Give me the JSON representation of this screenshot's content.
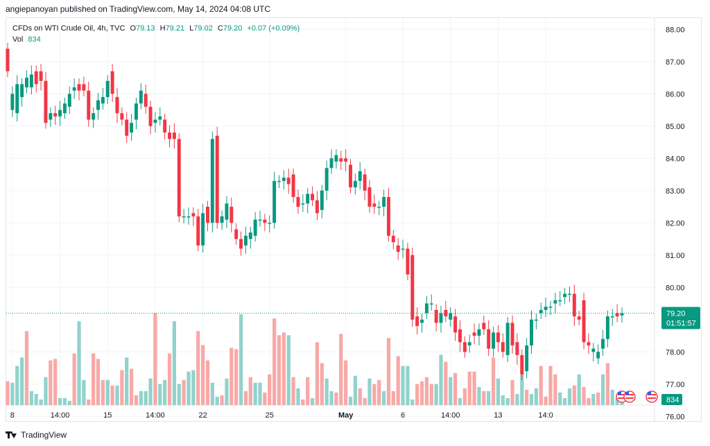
{
  "publish_line": "angiepanoyan published on TradingView.com, May 14, 2024 04:08 UTC",
  "legend": {
    "symbol": "CFDs on WTI Crude Oil, 4h, TVC",
    "o_label": "O",
    "o_value": "79.13",
    "h_label": "H",
    "h_value": "79.21",
    "l_label": "L",
    "l_value": "79.02",
    "c_label": "C",
    "c_value": "79.20",
    "change": "+0.07 (+0.09%)",
    "vol_label": "Vol",
    "vol_value": "834"
  },
  "price_badge": {
    "price": "79.20",
    "countdown": "01:51:57"
  },
  "volume_badge": "834",
  "footer_brand": "TradingView",
  "colors": {
    "up": "#089981",
    "down": "#f23645",
    "vol_up": "#92d2cc",
    "vol_down": "#f7a9a7",
    "grid": "#f0f3fa",
    "axis_text": "#131722"
  },
  "chart_data": {
    "type": "candlestick",
    "title": "",
    "xlabel": "",
    "ylabel": "",
    "ylim": [
      76.35,
      88.35
    ],
    "grid": true,
    "last_price": 79.2,
    "y_ticks": [
      "88.00",
      "87.00",
      "86.00",
      "85.00",
      "84.00",
      "83.00",
      "82.00",
      "81.00",
      "80.00",
      "78.00",
      "77.00",
      "76.00"
    ],
    "x_ticks": [
      {
        "label": "8",
        "index": 1
      },
      {
        "label": "14:00",
        "index": 11
      },
      {
        "label": "15",
        "index": 21
      },
      {
        "label": "14:00",
        "index": 31
      },
      {
        "label": "22",
        "index": 41
      },
      {
        "label": "25",
        "index": 55
      },
      {
        "label": "May",
        "index": 71
      },
      {
        "label": "6",
        "index": 83
      },
      {
        "label": "14:00",
        "index": 93
      },
      {
        "label": "13",
        "index": 103
      },
      {
        "label": "14:0",
        "index": 113
      }
    ],
    "candles": [
      [
        87.4,
        86.7
      ],
      [
        85.5,
        86.0
      ],
      [
        85.4,
        86.3
      ],
      [
        85.9,
        86.3
      ],
      [
        86.2,
        86.5
      ],
      [
        86.2,
        86.6
      ],
      [
        86.7,
        86.3
      ],
      [
        86.7,
        86.4
      ],
      [
        86.4,
        85.1
      ],
      [
        85.2,
        85.4
      ],
      [
        85.4,
        85.3
      ],
      [
        85.3,
        85.5
      ],
      [
        85.4,
        85.7
      ],
      [
        85.6,
        86.0
      ],
      [
        86.1,
        86.2
      ],
      [
        86.3,
        86.1
      ],
      [
        86.3,
        86.1
      ],
      [
        86.1,
        85.2
      ],
      [
        85.2,
        85.4
      ],
      [
        85.5,
        85.8
      ],
      [
        85.7,
        85.9
      ],
      [
        85.9,
        86.4
      ],
      [
        86.7,
        86.0
      ],
      [
        85.9,
        85.4
      ],
      [
        85.4,
        85.2
      ],
      [
        85.2,
        84.7
      ],
      [
        84.8,
        85.1
      ],
      [
        85.2,
        85.7
      ],
      [
        85.7,
        86.1
      ],
      [
        86.0,
        85.6
      ],
      [
        85.6,
        85.0
      ],
      [
        85.1,
        85.2
      ],
      [
        85.2,
        85.3
      ],
      [
        85.2,
        84.8
      ],
      [
        84.8,
        84.6
      ],
      [
        84.8,
        84.6
      ],
      [
        84.6,
        82.2
      ],
      [
        82.2,
        82.2
      ],
      [
        82.2,
        82.2
      ],
      [
        82.3,
        82.2
      ],
      [
        82.2,
        81.3
      ],
      [
        81.3,
        82.3
      ],
      [
        82.5,
        82.0
      ],
      [
        82.0,
        84.6
      ],
      [
        84.7,
        82.0
      ],
      [
        82.0,
        82.2
      ],
      [
        82.1,
        82.6
      ],
      [
        82.5,
        82.0
      ],
      [
        81.8,
        81.5
      ],
      [
        81.5,
        81.2
      ],
      [
        81.3,
        81.6
      ],
      [
        81.5,
        81.7
      ],
      [
        81.6,
        82.1
      ],
      [
        82.1,
        82.1
      ],
      [
        82.1,
        82.0
      ],
      [
        82.0,
        82.0
      ],
      [
        82.0,
        83.3
      ],
      [
        83.3,
        83.3
      ],
      [
        83.3,
        83.4
      ],
      [
        83.4,
        83.2
      ],
      [
        83.5,
        82.8
      ],
      [
        82.8,
        82.5
      ],
      [
        82.6,
        82.6
      ],
      [
        82.6,
        82.9
      ],
      [
        82.9,
        82.7
      ],
      [
        82.7,
        82.3
      ],
      [
        82.4,
        83.0
      ],
      [
        83.0,
        83.7
      ],
      [
        83.7,
        84.0
      ],
      [
        83.9,
        84.1
      ],
      [
        84.0,
        83.9
      ],
      [
        84.0,
        83.9
      ],
      [
        83.8,
        83.1
      ],
      [
        83.1,
        83.3
      ],
      [
        83.3,
        83.6
      ],
      [
        83.5,
        83.0
      ],
      [
        83.1,
        82.5
      ],
      [
        82.6,
        82.5
      ],
      [
        82.5,
        82.5
      ],
      [
        82.5,
        82.8
      ],
      [
        82.8,
        81.6
      ],
      [
        81.6,
        81.4
      ],
      [
        81.3,
        81.1
      ],
      [
        81.2,
        81.2
      ],
      [
        81.2,
        80.4
      ],
      [
        81.0,
        79.0
      ],
      [
        79.1,
        78.8
      ],
      [
        78.9,
        79.0
      ],
      [
        79.2,
        79.5
      ],
      [
        79.5,
        79.5
      ],
      [
        79.3,
        78.9
      ],
      [
        78.9,
        79.2
      ],
      [
        79.3,
        79.1
      ],
      [
        79.0,
        79.2
      ],
      [
        79.1,
        78.6
      ],
      [
        78.7,
        78.3
      ],
      [
        78.3,
        78.0
      ],
      [
        78.2,
        78.3
      ],
      [
        78.6,
        78.5
      ],
      [
        78.5,
        78.7
      ],
      [
        78.9,
        78.7
      ],
      [
        78.7,
        78.1
      ],
      [
        78.1,
        78.6
      ],
      [
        78.6,
        78.3
      ],
      [
        78.3,
        78.0
      ],
      [
        77.9,
        78.9
      ],
      [
        78.9,
        78.2
      ],
      [
        78.3,
        77.9
      ],
      [
        77.9,
        77.3
      ],
      [
        77.4,
        78.2
      ]
    ],
    "candles_b": [
      [
        78.2,
        79.0
      ],
      [
        79.0,
        79.0
      ],
      [
        79.2,
        79.3
      ],
      [
        79.3,
        79.4
      ],
      [
        79.4,
        79.4
      ],
      [
        79.5,
        79.6
      ],
      [
        79.6,
        79.6
      ],
      [
        79.7,
        79.8
      ],
      [
        79.8,
        79.8
      ],
      [
        79.8,
        79.1
      ],
      [
        79.1,
        79.0
      ],
      [
        79.6,
        78.3
      ],
      [
        78.3,
        78.2
      ],
      [
        78.0,
        78.1
      ],
      [
        77.8,
        78.0
      ],
      [
        78.1,
        78.4
      ],
      [
        78.4,
        79.1
      ],
      [
        79.1,
        79.1
      ],
      [
        79.2,
        79.1
      ],
      [
        79.13,
        79.2
      ]
    ],
    "volume": [
      {
        "v": 17,
        "up": false
      },
      {
        "v": 16,
        "up": true
      },
      {
        "v": 28,
        "up": true
      },
      {
        "v": 34,
        "up": true
      },
      {
        "v": 53,
        "up": false
      },
      {
        "v": 10,
        "up": true
      },
      {
        "v": 8,
        "up": true
      },
      {
        "v": 4,
        "up": true
      },
      {
        "v": 20,
        "up": true
      },
      {
        "v": 32,
        "up": false
      },
      {
        "v": 33,
        "up": false
      },
      {
        "v": 5,
        "up": true
      },
      {
        "v": 5,
        "up": true
      },
      {
        "v": 3,
        "up": true
      },
      {
        "v": 37,
        "up": false
      },
      {
        "v": 60,
        "up": true
      },
      {
        "v": 18,
        "up": true
      },
      {
        "v": 4,
        "up": false
      },
      {
        "v": 37,
        "up": false
      },
      {
        "v": 33,
        "up": false
      },
      {
        "v": 18,
        "up": false
      },
      {
        "v": 18,
        "up": true
      },
      {
        "v": 14,
        "up": false
      },
      {
        "v": 14,
        "up": true
      },
      {
        "v": 25,
        "up": false
      },
      {
        "v": 34,
        "up": true
      },
      {
        "v": 26,
        "up": false
      },
      {
        "v": 7,
        "up": false
      },
      {
        "v": 10,
        "up": true
      },
      {
        "v": 10,
        "up": true
      },
      {
        "v": 19,
        "up": true
      },
      {
        "v": 66,
        "up": false
      },
      {
        "v": 15,
        "up": true
      },
      {
        "v": 18,
        "up": true
      },
      {
        "v": 37,
        "up": false
      },
      {
        "v": 60,
        "up": true
      },
      {
        "v": 15,
        "up": true
      },
      {
        "v": 18,
        "up": false
      },
      {
        "v": 24,
        "up": true
      },
      {
        "v": 25,
        "up": true
      },
      {
        "v": 53,
        "up": false
      },
      {
        "v": 43,
        "up": false
      },
      {
        "v": 32,
        "up": false
      },
      {
        "v": 16,
        "up": true
      },
      {
        "v": 6,
        "up": true
      },
      {
        "v": 7,
        "up": false
      },
      {
        "v": 19,
        "up": true
      },
      {
        "v": 41,
        "up": false
      },
      {
        "v": 40,
        "up": false
      },
      {
        "v": 65,
        "up": true
      },
      {
        "v": 10,
        "up": false
      },
      {
        "v": 20,
        "up": false
      },
      {
        "v": 16,
        "up": true
      },
      {
        "v": 16,
        "up": true
      },
      {
        "v": 9,
        "up": false
      },
      {
        "v": 22,
        "up": false
      },
      {
        "v": 62,
        "up": false
      },
      {
        "v": 50,
        "up": false
      },
      {
        "v": 52,
        "up": false
      },
      {
        "v": 50,
        "up": true
      },
      {
        "v": 20,
        "up": false
      },
      {
        "v": 12,
        "up": true
      },
      {
        "v": 4,
        "up": false
      },
      {
        "v": 20,
        "up": false
      },
      {
        "v": 5,
        "up": true
      },
      {
        "v": 45,
        "up": false
      },
      {
        "v": 30,
        "up": false
      },
      {
        "v": 19,
        "up": true
      },
      {
        "v": 10,
        "up": true
      },
      {
        "v": 9,
        "up": false
      },
      {
        "v": 51,
        "up": false
      },
      {
        "v": 32,
        "up": false
      },
      {
        "v": 6,
        "up": true
      },
      {
        "v": 21,
        "up": true
      },
      {
        "v": 12,
        "up": false
      },
      {
        "v": 5,
        "up": false
      },
      {
        "v": 19,
        "up": true
      },
      {
        "v": 15,
        "up": false
      },
      {
        "v": 18,
        "up": false
      },
      {
        "v": 10,
        "up": true
      },
      {
        "v": 48,
        "up": false
      },
      {
        "v": 10,
        "up": false
      },
      {
        "v": 35,
        "up": false
      },
      {
        "v": 28,
        "up": true
      },
      {
        "v": 28,
        "up": true
      },
      {
        "v": 4,
        "up": true
      },
      {
        "v": 15,
        "up": false
      },
      {
        "v": 17,
        "up": false
      },
      {
        "v": 20,
        "up": false
      },
      {
        "v": 15,
        "up": false
      },
      {
        "v": 15,
        "up": true
      },
      {
        "v": 36,
        "up": true
      },
      {
        "v": 31,
        "up": false
      },
      {
        "v": 20,
        "up": true
      },
      {
        "v": 23,
        "up": false
      },
      {
        "v": 5,
        "up": true
      },
      {
        "v": 12,
        "up": false
      },
      {
        "v": 24,
        "up": false
      },
      {
        "v": 24,
        "up": false
      },
      {
        "v": 13,
        "up": true
      },
      {
        "v": 10,
        "up": false
      },
      {
        "v": 10,
        "up": true
      },
      {
        "v": 34,
        "up": false
      },
      {
        "v": 19,
        "up": true
      },
      {
        "v": 7,
        "up": true
      },
      {
        "v": 5,
        "up": true
      },
      {
        "v": 18,
        "up": false
      },
      {
        "v": 8,
        "up": true
      },
      {
        "v": 22,
        "up": true
      },
      {
        "v": 11,
        "up": false
      }
    ],
    "volume_b": [
      {
        "v": 8,
        "up": true
      },
      {
        "v": 12,
        "up": true
      },
      {
        "v": 28,
        "up": false
      },
      {
        "v": 6,
        "up": false
      },
      {
        "v": 28,
        "up": false
      },
      {
        "v": 22,
        "up": false
      },
      {
        "v": 9,
        "up": true
      },
      {
        "v": 5,
        "up": true
      },
      {
        "v": 12,
        "up": true
      },
      {
        "v": 14,
        "up": false
      },
      {
        "v": 22,
        "up": true
      },
      {
        "v": 13,
        "up": false
      },
      {
        "v": 5,
        "up": false
      },
      {
        "v": 8,
        "up": true
      },
      {
        "v": 9,
        "up": false
      },
      {
        "v": 22,
        "up": true
      },
      {
        "v": 30,
        "up": false
      },
      {
        "v": 11,
        "up": true
      },
      {
        "v": 5,
        "up": true
      },
      {
        "v": 4,
        "up": true
      }
    ]
  }
}
